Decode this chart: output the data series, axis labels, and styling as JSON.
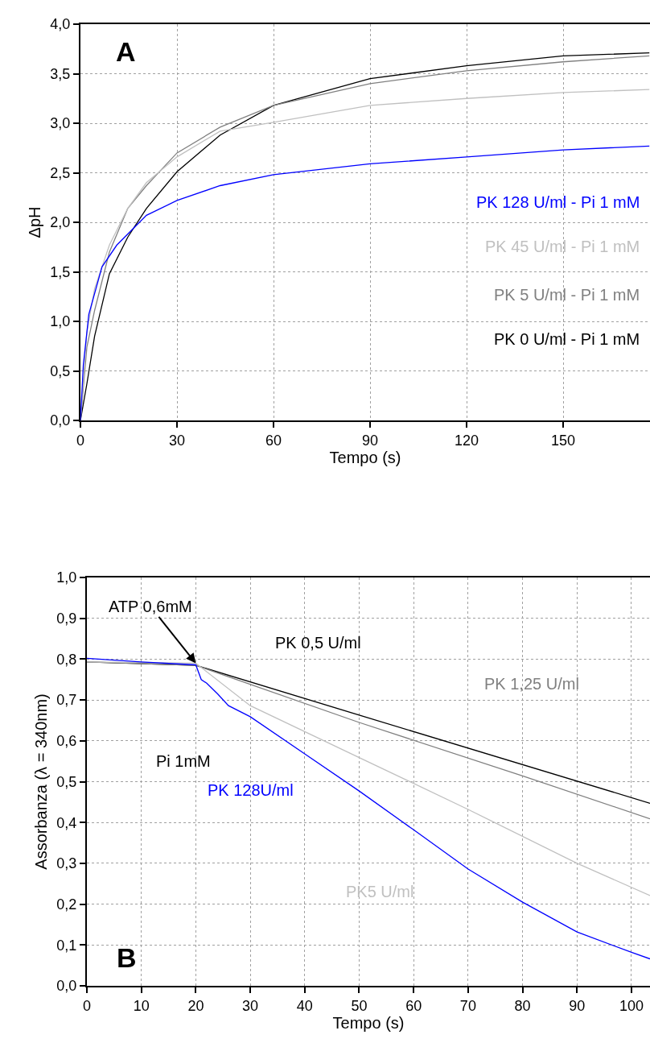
{
  "chart_data": [
    {
      "type": "line",
      "xlabel": "Tempo (s)",
      "ylabel": "ΔpH",
      "xlim": [
        0,
        177
      ],
      "ylim": [
        0,
        4
      ],
      "xticks": [
        0,
        30,
        60,
        90,
        120,
        150
      ],
      "yticks": [
        {
          "value": 0,
          "label": "0,0"
        },
        {
          "value": 0.5,
          "label": "0,5"
        },
        {
          "value": 1,
          "label": "1,0"
        },
        {
          "value": 1.5,
          "label": "1,5"
        },
        {
          "value": 2,
          "label": "2,0"
        },
        {
          "value": 2.5,
          "label": "2,5"
        },
        {
          "value": 3,
          "label": "3,0"
        },
        {
          "value": 3.5,
          "label": "3,5"
        },
        {
          "value": 4,
          "label": "4,0"
        }
      ],
      "grid": true,
      "line_style": "solid",
      "marker": "none",
      "annotations": [
        "A"
      ],
      "series": [
        {
          "name": "PK 0 U/ml - Pi 1 mM",
          "color": "#000000",
          "x": [
            0,
            2,
            4.4,
            9,
            14.7,
            20.5,
            30,
            43.4,
            60,
            90,
            120,
            150,
            176.8
          ],
          "values": [
            0,
            0.37,
            0.85,
            1.48,
            1.85,
            2.14,
            2.51,
            2.88,
            3.18,
            3.45,
            3.58,
            3.68,
            3.71
          ]
        },
        {
          "name": "PK 5 U/ml - Pi 1 mM",
          "color": "#808080",
          "x": [
            0,
            2,
            4.4,
            9,
            14.7,
            20.5,
            30,
            43.4,
            60,
            90,
            120,
            150,
            176.8
          ],
          "values": [
            0,
            0.74,
            1.11,
            1.7,
            2.14,
            2.37,
            2.7,
            2.96,
            3.18,
            3.4,
            3.53,
            3.62,
            3.68
          ]
        },
        {
          "name": "PK 45 U/ml - Pi 1 mM",
          "color": "#c0c0c0",
          "x": [
            0,
            2,
            4.4,
            9,
            14.7,
            20.5,
            30,
            43.4,
            60,
            90,
            120,
            150,
            176.8
          ],
          "values": [
            0,
            0.89,
            1.33,
            1.77,
            2.14,
            2.4,
            2.66,
            2.92,
            3.01,
            3.18,
            3.25,
            3.31,
            3.34
          ]
        },
        {
          "name": "PK 128 U/ml - Pi 1 mM",
          "color": "#0000ff",
          "x": [
            0,
            0.9,
            2.6,
            6.7,
            11.3,
            20.5,
            30,
            43.4,
            60,
            90,
            120,
            150,
            176.8
          ],
          "values": [
            0,
            0.56,
            1.07,
            1.55,
            1.77,
            2.07,
            2.22,
            2.37,
            2.48,
            2.59,
            2.66,
            2.73,
            2.77
          ]
        }
      ]
    },
    {
      "type": "line",
      "xlabel": "Tempo (s)",
      "ylabel": "Assorbanza (λ = 340nm)",
      "xlim": [
        0,
        103.4
      ],
      "ylim": [
        0,
        1
      ],
      "xticks": [
        0,
        10,
        20,
        30,
        40,
        50,
        60,
        70,
        80,
        90,
        100
      ],
      "yticks": [
        {
          "value": 0,
          "label": "0,0"
        },
        {
          "value": 0.1,
          "label": "0,1"
        },
        {
          "value": 0.2,
          "label": "0,2"
        },
        {
          "value": 0.3,
          "label": "0,3"
        },
        {
          "value": 0.4,
          "label": "0,4"
        },
        {
          "value": 0.5,
          "label": "0,5"
        },
        {
          "value": 0.6,
          "label": "0,6"
        },
        {
          "value": 0.7,
          "label": "0,7"
        },
        {
          "value": 0.8,
          "label": "0,8"
        },
        {
          "value": 0.9,
          "label": "0,9"
        },
        {
          "value": 1,
          "label": "1,0"
        }
      ],
      "grid": true,
      "line_style": "solid",
      "marker": "none",
      "annotations": [
        "B",
        "Pi 1mM",
        {
          "text": "ATP 0,6mM",
          "x": 20,
          "y": 0.79
        }
      ],
      "series": [
        {
          "name": "PK 0,5 U/ml",
          "color": "#000000",
          "x": [
            0,
            20,
            50,
            103.4
          ],
          "values": [
            0.793,
            0.785,
            0.663,
            0.447
          ]
        },
        {
          "name": "PK 1,25 U/ml",
          "color": "#808080",
          "x": [
            0,
            20,
            50,
            80,
            103.4
          ],
          "values": [
            0.793,
            0.785,
            0.645,
            0.514,
            0.409
          ]
        },
        {
          "name": "PK5 U/ml",
          "color": "#c0c0c0",
          "x": [
            0,
            20,
            30,
            50,
            70,
            90,
            103.4
          ],
          "values": [
            0.793,
            0.79,
            0.686,
            0.559,
            0.432,
            0.3,
            0.221
          ]
        },
        {
          "name": "PK 128U/ml",
          "color": "#0000ff",
          "x": [
            0,
            10,
            20,
            21,
            22,
            24,
            26,
            30,
            40,
            50,
            60,
            70,
            80,
            90,
            100,
            103.4
          ],
          "values": [
            0.802,
            0.793,
            0.786,
            0.75,
            0.741,
            0.715,
            0.686,
            0.659,
            0.568,
            0.477,
            0.382,
            0.286,
            0.205,
            0.132,
            0.082,
            0.066
          ]
        }
      ]
    }
  ]
}
